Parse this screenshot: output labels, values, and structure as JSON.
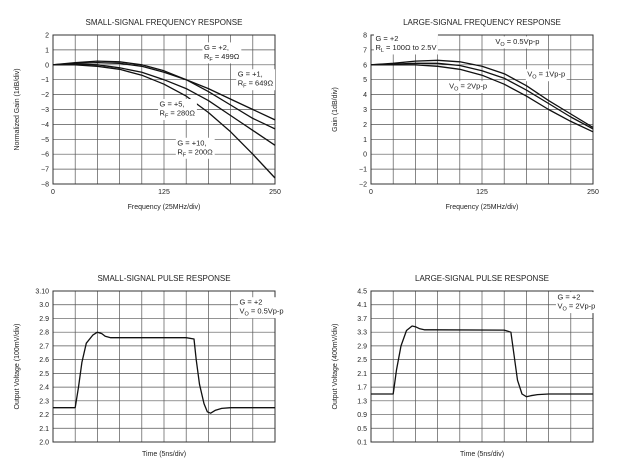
{
  "chart_data": [
    {
      "type": "line",
      "title": "SMALL-SIGNAL FREQUENCY RESPONSE",
      "xlabel": "Frequency (25MHz/div)",
      "ylabel": "Normalized Gain (1dB/div)",
      "xlim": [
        0,
        250
      ],
      "ylim": [
        -8,
        2
      ],
      "xticks": [
        {
          "v": 0,
          "label": "0"
        },
        {
          "v": 125,
          "label": "125"
        },
        {
          "v": 250,
          "label": "250"
        }
      ],
      "yticks": [
        {
          "v": 2,
          "label": "2"
        },
        {
          "v": 1,
          "label": "1"
        },
        {
          "v": 0,
          "label": "0"
        },
        {
          "v": -1,
          "label": "−1"
        },
        {
          "v": -2,
          "label": "−2"
        },
        {
          "v": -3,
          "label": "−3"
        },
        {
          "v": -4,
          "label": "−4"
        },
        {
          "v": -5,
          "label": "−5"
        },
        {
          "v": -6,
          "label": "−6"
        },
        {
          "v": -7,
          "label": "−7"
        },
        {
          "v": -8,
          "label": "−8"
        }
      ],
      "series": [
        {
          "name": "G = +2, RF = 499Ω",
          "x": [
            0,
            25,
            50,
            75,
            100,
            125,
            150,
            175,
            200,
            225,
            250
          ],
          "y": [
            0,
            0.1,
            0.15,
            0.1,
            -0.1,
            -0.5,
            -1.0,
            -1.6,
            -2.3,
            -3.0,
            -3.7
          ]
        },
        {
          "name": "G = +1, RF = 649Ω",
          "x": [
            0,
            25,
            50,
            75,
            100,
            125,
            150,
            175,
            200,
            225,
            250
          ],
          "y": [
            0,
            0.15,
            0.25,
            0.2,
            0.0,
            -0.4,
            -1.0,
            -1.8,
            -2.7,
            -3.6,
            -4.3
          ]
        },
        {
          "name": "G = +5, RF = 280Ω",
          "x": [
            0,
            25,
            50,
            75,
            100,
            125,
            150,
            175,
            200,
            225,
            250
          ],
          "y": [
            0,
            0.05,
            0.0,
            -0.2,
            -0.5,
            -1.0,
            -1.6,
            -2.4,
            -3.4,
            -4.4,
            -5.4
          ]
        },
        {
          "name": "G = +10, RF = 200Ω",
          "x": [
            0,
            25,
            50,
            75,
            100,
            125,
            150,
            175,
            200,
            225,
            250
          ],
          "y": [
            0,
            0.0,
            -0.1,
            -0.3,
            -0.7,
            -1.3,
            -2.1,
            -3.2,
            -4.5,
            -6.0,
            -7.6
          ]
        }
      ],
      "annotations": [
        {
          "lines": [
            "G = +2,",
            "RF = 499Ω"
          ],
          "x": 170,
          "y": 1.0
        },
        {
          "lines": [
            "G = +1,",
            "RF = 649Ω"
          ],
          "x": 208,
          "y": -0.8
        },
        {
          "lines": [
            "G = +5,",
            "RF = 280Ω"
          ],
          "x": 120,
          "y": -2.8
        },
        {
          "lines": [
            "G = +10,",
            "RF = 200Ω"
          ],
          "x": 140,
          "y": -5.4
        }
      ]
    },
    {
      "type": "line",
      "title": "LARGE-SIGNAL FREQUENCY RESPONSE",
      "xlabel": "Frequency (25MHz/div)",
      "ylabel": "Gain (1dB/div)",
      "xlim": [
        0,
        250
      ],
      "ylim": [
        -2,
        8
      ],
      "xticks": [
        {
          "v": 0,
          "label": "0"
        },
        {
          "v": 125,
          "label": "125"
        },
        {
          "v": 250,
          "label": "250"
        }
      ],
      "yticks": [
        {
          "v": 8,
          "label": "8"
        },
        {
          "v": 7,
          "label": "7"
        },
        {
          "v": 6,
          "label": "6"
        },
        {
          "v": 5,
          "label": "5"
        },
        {
          "v": 4,
          "label": "4"
        },
        {
          "v": 3,
          "label": "3"
        },
        {
          "v": 2,
          "label": "2"
        },
        {
          "v": 1,
          "label": "1"
        },
        {
          "v": 0,
          "label": "0"
        },
        {
          "v": -1,
          "label": "−1"
        },
        {
          "v": -2,
          "label": "−2"
        }
      ],
      "series": [
        {
          "name": "VO = 0.5Vp-p",
          "x": [
            0,
            25,
            50,
            75,
            100,
            125,
            150,
            175,
            200,
            225,
            250
          ],
          "y": [
            6.0,
            6.1,
            6.25,
            6.3,
            6.2,
            5.9,
            5.4,
            4.6,
            3.6,
            2.7,
            1.8
          ]
        },
        {
          "name": "VO = 1Vp-p",
          "x": [
            0,
            25,
            50,
            75,
            100,
            125,
            150,
            175,
            200,
            225,
            250
          ],
          "y": [
            6.0,
            6.05,
            6.1,
            6.1,
            5.95,
            5.6,
            5.1,
            4.3,
            3.4,
            2.5,
            1.7
          ]
        },
        {
          "name": "VO = 2Vp-p",
          "x": [
            0,
            25,
            50,
            75,
            100,
            125,
            150,
            175,
            200,
            225,
            250
          ],
          "y": [
            6.0,
            6.0,
            6.0,
            5.9,
            5.7,
            5.3,
            4.7,
            3.9,
            3.0,
            2.2,
            1.5
          ]
        }
      ],
      "annotations": [
        {
          "lines": [
            "G = +2",
            "RL = 100Ω to 2.5V"
          ],
          "x": 5,
          "y": 7.6
        },
        {
          "lines": [
            "VO = 0.5Vp-p"
          ],
          "x": 140,
          "y": 7.4
        },
        {
          "lines": [
            "VO = 1Vp-p"
          ],
          "x": 176,
          "y": 5.2
        },
        {
          "lines": [
            "VO = 2Vp-p"
          ],
          "x": 88,
          "y": 4.4
        }
      ]
    },
    {
      "type": "line",
      "title": "SMALL-SIGNAL PULSE RESPONSE",
      "xlabel": "Time (5ns/div)",
      "ylabel": "Output Voltage (100mV/div)",
      "xlim": [
        0,
        10
      ],
      "ylim": [
        2.0,
        3.1
      ],
      "xticks": [],
      "yticks": [
        {
          "v": 3.1,
          "label": "3.10"
        },
        {
          "v": 3.0,
          "label": "3.0"
        },
        {
          "v": 2.9,
          "label": "2.9"
        },
        {
          "v": 2.8,
          "label": "2.8"
        },
        {
          "v": 2.7,
          "label": "2.7"
        },
        {
          "v": 2.6,
          "label": "2.6"
        },
        {
          "v": 2.5,
          "label": "2.5"
        },
        {
          "v": 2.4,
          "label": "2.4"
        },
        {
          "v": 2.3,
          "label": "2.3"
        },
        {
          "v": 2.2,
          "label": "2.2"
        },
        {
          "v": 2.1,
          "label": "2.1"
        },
        {
          "v": 2.0,
          "label": "2.0"
        }
      ],
      "series": [
        {
          "name": "VO = 0.5Vp-p",
          "x": [
            0,
            1.0,
            1.15,
            1.3,
            1.5,
            1.8,
            2.0,
            2.2,
            2.35,
            2.6,
            3.0,
            6.0,
            6.35,
            6.45,
            6.6,
            6.8,
            6.95,
            7.1,
            7.3,
            7.6,
            8.0,
            10.0
          ],
          "y": [
            2.25,
            2.25,
            2.4,
            2.58,
            2.72,
            2.78,
            2.8,
            2.79,
            2.77,
            2.76,
            2.76,
            2.76,
            2.75,
            2.6,
            2.42,
            2.28,
            2.22,
            2.21,
            2.23,
            2.245,
            2.25,
            2.25
          ]
        }
      ],
      "annotations": [
        {
          "lines": [
            "G = +2",
            "VO = 0.5Vp-p"
          ],
          "x": 8.4,
          "y": 3.0
        }
      ]
    },
    {
      "type": "line",
      "title": "LARGE-SIGNAL PULSE RESPONSE",
      "xlabel": "Time (5ns/div)",
      "ylabel": "Output Voltage (400mV/div)",
      "xlim": [
        0,
        10
      ],
      "ylim": [
        0.1,
        4.5
      ],
      "xticks": [],
      "yticks": [
        {
          "v": 4.5,
          "label": "4.5"
        },
        {
          "v": 4.1,
          "label": "4.1"
        },
        {
          "v": 3.7,
          "label": "3.7"
        },
        {
          "v": 3.3,
          "label": "3.3"
        },
        {
          "v": 2.9,
          "label": "2.9"
        },
        {
          "v": 2.5,
          "label": "2.5"
        },
        {
          "v": 2.1,
          "label": "2.1"
        },
        {
          "v": 1.7,
          "label": "1.7"
        },
        {
          "v": 1.3,
          "label": "1.3"
        },
        {
          "v": 0.9,
          "label": "0.9"
        },
        {
          "v": 0.5,
          "label": "0.5"
        },
        {
          "v": 0.1,
          "label": "0.1"
        }
      ],
      "series": [
        {
          "name": "VO = 2Vp-p",
          "x": [
            0,
            1.0,
            1.15,
            1.35,
            1.6,
            1.85,
            2.0,
            2.2,
            2.4,
            2.8,
            6.0,
            6.3,
            6.45,
            6.6,
            6.8,
            7.0,
            7.2,
            7.5,
            8.0,
            10.0
          ],
          "y": [
            1.5,
            1.5,
            2.2,
            2.9,
            3.35,
            3.48,
            3.46,
            3.4,
            3.37,
            3.37,
            3.36,
            3.3,
            2.6,
            1.9,
            1.5,
            1.42,
            1.45,
            1.48,
            1.5,
            1.5
          ]
        }
      ],
      "annotations": [
        {
          "lines": [
            "G = +2",
            "VO = 2Vp-p"
          ],
          "x": 8.4,
          "y": 4.25
        }
      ]
    }
  ]
}
